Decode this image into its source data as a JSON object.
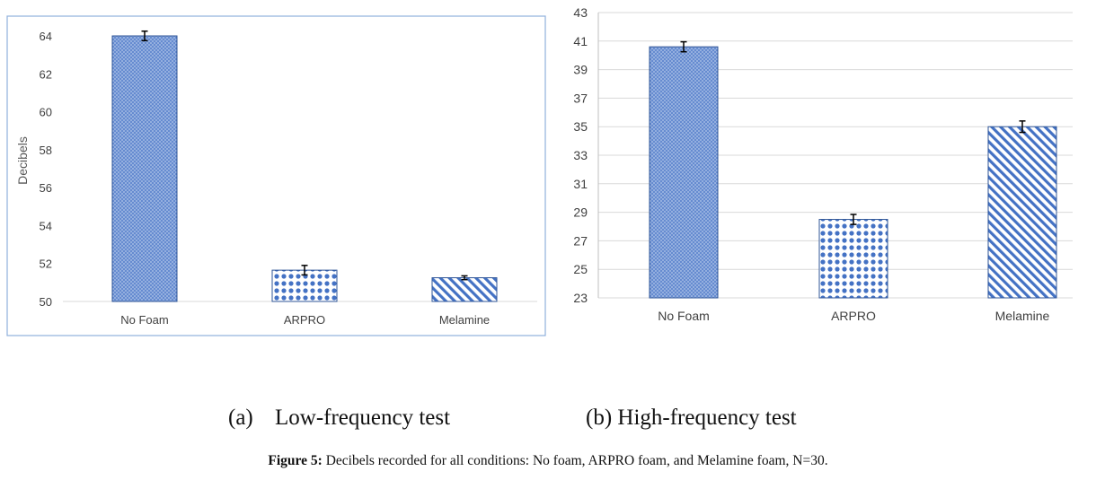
{
  "chart_data": [
    {
      "type": "bar",
      "categories": [
        "No Foam",
        "ARPRO",
        "Melamine"
      ],
      "values": [
        64.0,
        51.65,
        51.25
      ],
      "error": [
        0.25,
        0.25,
        0.1
      ],
      "patterns": [
        "crosshatch",
        "dots",
        "diagonal"
      ],
      "ylabel": "Decibels",
      "ylim": [
        50,
        64
      ],
      "yticks": [
        50,
        52,
        54,
        56,
        58,
        60,
        62,
        64
      ],
      "grid": false,
      "legend": "none"
    },
    {
      "type": "bar",
      "categories": [
        "No Foam",
        "ARPRO",
        "Melamine"
      ],
      "values": [
        40.6,
        28.5,
        35.0
      ],
      "error": [
        0.35,
        0.35,
        0.4
      ],
      "patterns": [
        "crosshatch",
        "dots",
        "diagonal"
      ],
      "ylim": [
        23,
        43
      ],
      "yticks": [
        23,
        25,
        27,
        29,
        31,
        33,
        35,
        37,
        39,
        41,
        43
      ],
      "grid": true,
      "legend": "none"
    }
  ],
  "subfigures": {
    "a": {
      "tag": "(a)",
      "label": "Low-frequency test"
    },
    "b": {
      "label": "(b) High-frequency test"
    }
  },
  "caption": {
    "prefix": "Figure 5:",
    "text": "Decibels recorded for all conditions: No foam, ARPRO foam, and Melamine foam, N=30."
  },
  "colors": {
    "bar": "#4472c4",
    "bar_dark": "#2f5597",
    "frame_a": "#8fb0dc",
    "grid": "#d9d9d9",
    "axis_text": "#595959",
    "error_bar": "#000000"
  }
}
